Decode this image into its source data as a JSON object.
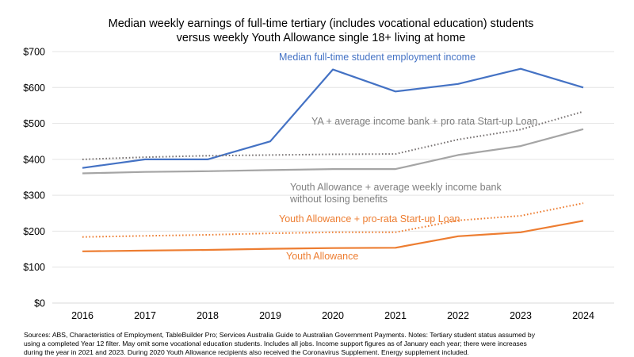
{
  "chart_data": {
    "type": "line",
    "title": [
      "Median weekly earnings of full-time tertiary (includes vocational education) students",
      "versus weekly Youth Allowance single 18+ living at home"
    ],
    "xlabel": "",
    "ylabel": "",
    "x": [
      "2016",
      "2017",
      "2018",
      "2019",
      "2020",
      "2021",
      "2022",
      "2023",
      "2024"
    ],
    "ylim": [
      0,
      700
    ],
    "y_ticks": [
      0,
      100,
      200,
      300,
      400,
      500,
      600,
      700
    ],
    "y_tick_labels": [
      "$0",
      "$100",
      "$200",
      "$300",
      "$400",
      "$500",
      "$600",
      "$700"
    ],
    "grid": "horizontal",
    "legend": "none (direct labels)",
    "series": [
      {
        "label_lines": [
          "Median full-time student employment income"
        ],
        "color": "#4472C4",
        "style": "solid",
        "values": [
          376,
          400,
          400,
          450,
          650,
          589,
          610,
          652,
          600
        ]
      },
      {
        "label_lines": [
          "YA + average income bank + pro rata Start-up Loan"
        ],
        "color": "#767171",
        "style": "dotted",
        "values": [
          400,
          406,
          410,
          412,
          414,
          415,
          455,
          483,
          533
        ]
      },
      {
        "label_lines": [
          "Youth Allowance + average weekly income bank",
          "without losing benefits"
        ],
        "color": "#A5A5A5",
        "style": "solid",
        "values": [
          361,
          365,
          367,
          370,
          373,
          373,
          412,
          437,
          484
        ]
      },
      {
        "label_lines": [
          "Youth Allowance + pro-rata Start-up Loan"
        ],
        "color": "#ED7D31",
        "style": "dotted",
        "values": [
          184,
          187,
          190,
          194,
          197,
          197,
          230,
          243,
          278
        ]
      },
      {
        "label_lines": [
          "Youth Allowance"
        ],
        "color": "#ED7D31",
        "style": "solid",
        "values": [
          144,
          146,
          148,
          151,
          153,
          154,
          186,
          197,
          229
        ]
      }
    ],
    "source_note": [
      "Sources: ABS, Characteristics of Employment, TableBuilder Pro; Services Australia Guide to Australian Government Payments. Notes: Tertiary student status assumed by",
      "using a completed Year 12 filter. May omit some vocational education students. Includes all jobs. Income support figures as of January each year; there were increases",
      "during the year in 2021 and 2023.  During 2020 Youth Allowance recipients also received the Coronavirus Supplement. Energy supplement included."
    ]
  }
}
